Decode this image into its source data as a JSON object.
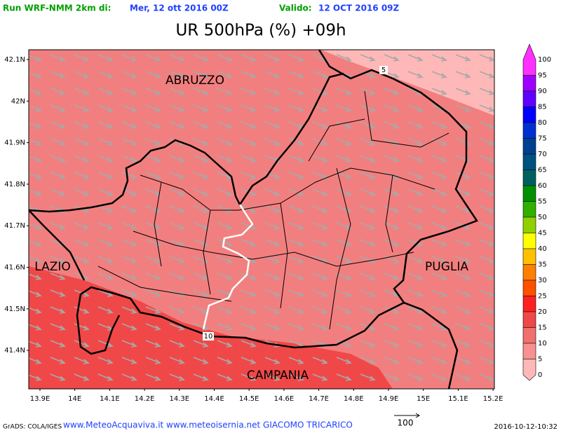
{
  "header": {
    "run_label": "Run WRF-NMM 2km di:",
    "run_date": "Mer, 12 ott 2016 00Z",
    "valid_label": "Valido:",
    "valid_date": "12 OCT 2016 09Z",
    "title": "UR 500hPa (%) +09h"
  },
  "map": {
    "lat_labels": [
      "42.1N",
      "42N",
      "41.9N",
      "41.8N",
      "41.7N",
      "41.6N",
      "41.5N",
      "41.4N"
    ],
    "lon_labels": [
      "13.9E",
      "14E",
      "14.1E",
      "14.2E",
      "14.3E",
      "14.4E",
      "14.5E",
      "14.6E",
      "14.7E",
      "14.8E",
      "14.9E",
      "15E",
      "15.1E",
      "15.2E"
    ],
    "regions": [
      "ABRUZZO",
      "LAZIO",
      "PUGLIA",
      "CAMPANIA"
    ],
    "contour_labels": [
      "5",
      "10"
    ]
  },
  "colorbar": {
    "labels": [
      "100",
      "95",
      "90",
      "85",
      "80",
      "75",
      "70",
      "65",
      "60",
      "55",
      "50",
      "45",
      "40",
      "35",
      "30",
      "25",
      "20",
      "15",
      "10",
      "5",
      "0"
    ],
    "colors": [
      "#ff30ff",
      "#a000ff",
      "#6000ff",
      "#0000ff",
      "#0030d0",
      "#004090",
      "#005080",
      "#006060",
      "#009000",
      "#30b000",
      "#90d000",
      "#ffff00",
      "#ffc000",
      "#ff8000",
      "#ff5000",
      "#ff2020",
      "#f04848",
      "#f07070",
      "#f89090",
      "#ffb8b8"
    ]
  },
  "footer": {
    "grads": "GrADS: COLA/IGES",
    "credits": "www.MeteoAcquaviva.it www.meteoisernia.net GIACOMO TRICARICO",
    "wind_scale": "100",
    "timestamp": "2016-10-12-10:32"
  }
}
